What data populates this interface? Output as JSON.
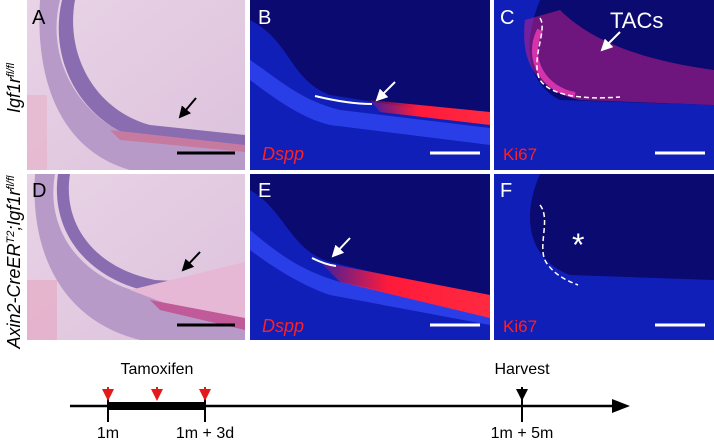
{
  "panels": [
    {
      "label": "A"
    },
    {
      "label": "B",
      "stain": "Dspp"
    },
    {
      "label": "C",
      "stain": "Ki67",
      "annotation": "TACs"
    },
    {
      "label": "D"
    },
    {
      "label": "E",
      "stain": "Dspp"
    },
    {
      "label": "F",
      "stain": "Ki67",
      "annotation": "*"
    }
  ],
  "row_labels": [
    {
      "parts": [
        "Igf1r",
        "fl/fl"
      ]
    },
    {
      "parts": [
        "Axin2-CreER",
        "T2",
        ";Igf1r",
        "fl/fl"
      ]
    }
  ],
  "timeline": {
    "events": [
      "Tamoxifen",
      "Harvest"
    ],
    "ticks": [
      "1m",
      "1m + 3d",
      "1m + 5m"
    ]
  }
}
